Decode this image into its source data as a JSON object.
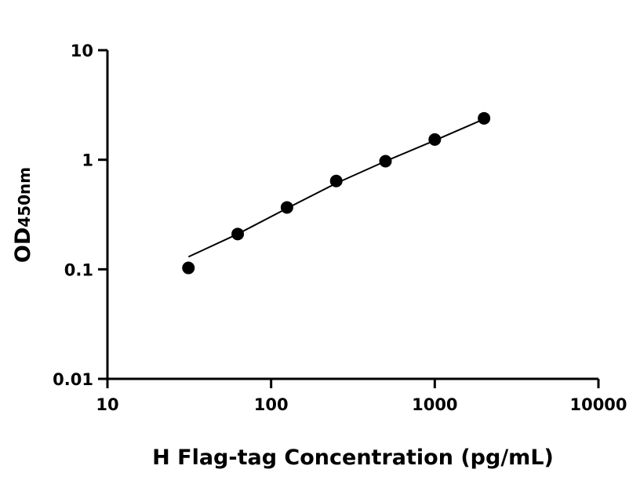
{
  "chart_data": {
    "type": "scatter",
    "title": "",
    "xlabel": "H Flag-tag Concentration (pg/mL)",
    "ylabel": "OD",
    "ylabel_subscript": "450nm",
    "x_scale": "log",
    "y_scale": "log",
    "xlim": [
      10,
      10000
    ],
    "ylim": [
      0.01,
      10
    ],
    "x_ticks": [
      "10",
      "100",
      "1000",
      "10000"
    ],
    "y_ticks": [
      "0.01",
      "0.1",
      "1",
      "10"
    ],
    "grid": false,
    "series": [
      {
        "x": [
          31.25,
          62.5,
          125,
          250,
          500,
          1000,
          2000
        ],
        "y": [
          0.103,
          0.21,
          0.367,
          0.64,
          0.97,
          1.53,
          2.39
        ],
        "marker": "circle",
        "color": "#000000"
      }
    ],
    "fit_curve": {
      "x": [
        31.25,
        62.5,
        125,
        250,
        500,
        1000,
        2000
      ],
      "y": [
        0.13,
        0.21,
        0.36,
        0.61,
        0.97,
        1.5,
        2.35
      ],
      "color": "#000000"
    }
  }
}
